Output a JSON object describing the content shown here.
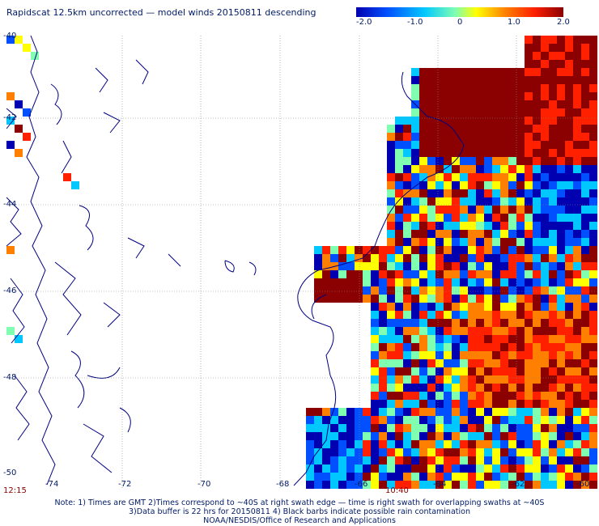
{
  "title": "Rapidscat 12.5km uncorrected — model winds 20150811 descending",
  "colorbar": {
    "tick_labels": [
      "-2.0",
      "-1.0",
      "0",
      "1.0",
      "2.0"
    ],
    "colors": [
      "#0000b0",
      "#0050ff",
      "#00c8ff",
      "#80ffb0",
      "#ffff00",
      "#ff8000",
      "#ff2000",
      "#8b0000"
    ]
  },
  "map": {
    "lat_labels": [
      "-40",
      "-42",
      "-44",
      "-46",
      "-48",
      "-50"
    ],
    "lon_labels": [
      "-74",
      "-72",
      "-70",
      "-68",
      "-66",
      "-64",
      "-62",
      "-60"
    ],
    "time_labels": {
      "left": "12:15",
      "right": "10:40"
    },
    "coast_color": "#000080",
    "grid_color": "#888888"
  },
  "notes": [
    "Note: 1) Times are GMT 2)Times correspond to ~40S at right swath edge — time is right swath for overlapping swaths at ~40S",
    "3)Data buffer is 22 hrs for 20150811 4) Black barbs indicate possible rain contamination",
    "NOAA/NESDIS/Office of Research and Applications"
  ]
}
